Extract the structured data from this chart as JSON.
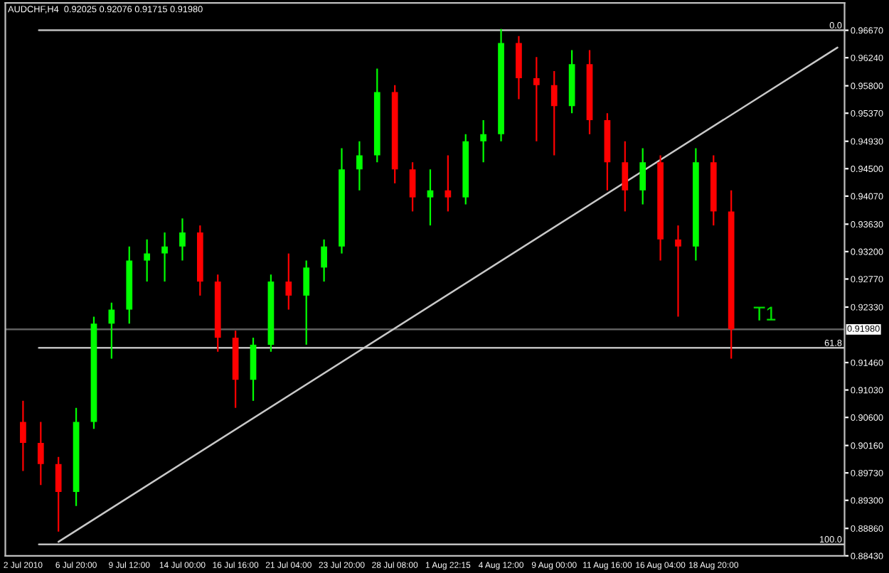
{
  "chart_data": {
    "type": "candlestick",
    "title": "AUDCHF,H4  0.92025 0.92076 0.91715 0.91980",
    "categories": [
      "2 Jul 2010",
      null,
      null,
      "6 Jul 20:00",
      null,
      null,
      "9 Jul 12:00",
      null,
      null,
      "14 Jul 00:00",
      null,
      null,
      "16 Jul 16:00",
      null,
      null,
      "21 Jul 04:00",
      null,
      null,
      "23 Jul 20:00",
      null,
      null,
      "28 Jul 08:00",
      null,
      null,
      "1 Aug 22:15",
      null,
      null,
      "4 Aug 12:00",
      null,
      null,
      "9 Aug 00:00",
      null,
      null,
      "11 Aug 16:00",
      null,
      null,
      "16 Aug 04:00",
      null,
      null,
      "18 Aug 20:00",
      null,
      null,
      null,
      null,
      null,
      null,
      null
    ],
    "ohlc": [
      [
        0.9053,
        0.9086,
        0.8976,
        0.902
      ],
      [
        0.902,
        0.9053,
        0.8954,
        0.8987
      ],
      [
        0.8987,
        0.8998,
        0.8881,
        0.8943
      ],
      [
        0.8943,
        0.9075,
        0.8921,
        0.9053
      ],
      [
        0.9053,
        0.9218,
        0.9042,
        0.9207
      ],
      [
        0.9207,
        0.924,
        0.9152,
        0.9229
      ],
      [
        0.9229,
        0.9328,
        0.9207,
        0.9306
      ],
      [
        0.9306,
        0.9339,
        0.9273,
        0.9317
      ],
      [
        0.9317,
        0.935,
        0.9273,
        0.9328
      ],
      [
        0.9328,
        0.9372,
        0.9306,
        0.935
      ],
      [
        0.935,
        0.9361,
        0.9251,
        0.9273
      ],
      [
        0.9273,
        0.9284,
        0.9163,
        0.9185
      ],
      [
        0.9185,
        0.9196,
        0.9075,
        0.9119
      ],
      [
        0.9119,
        0.9185,
        0.9086,
        0.9174
      ],
      [
        0.9174,
        0.9284,
        0.9163,
        0.9273
      ],
      [
        0.9273,
        0.9317,
        0.9229,
        0.9251
      ],
      [
        0.9251,
        0.9306,
        0.9174,
        0.9295
      ],
      [
        0.9295,
        0.9339,
        0.9273,
        0.9328
      ],
      [
        0.9328,
        0.9482,
        0.9317,
        0.9449
      ],
      [
        0.9449,
        0.9493,
        0.9416,
        0.9471
      ],
      [
        0.9471,
        0.9607,
        0.946,
        0.957
      ],
      [
        0.957,
        0.9581,
        0.9427,
        0.9449
      ],
      [
        0.9449,
        0.946,
        0.9383,
        0.9405
      ],
      [
        0.9405,
        0.9449,
        0.9361,
        0.9416
      ],
      [
        0.9416,
        0.9471,
        0.9383,
        0.9405
      ],
      [
        0.9405,
        0.9504,
        0.9394,
        0.9493
      ],
      [
        0.9493,
        0.9526,
        0.946,
        0.9504
      ],
      [
        0.9504,
        0.9669,
        0.9493,
        0.9647
      ],
      [
        0.9647,
        0.9658,
        0.9559,
        0.9592
      ],
      [
        0.9592,
        0.9625,
        0.9493,
        0.9581
      ],
      [
        0.9581,
        0.9603,
        0.9471,
        0.9548
      ],
      [
        0.9548,
        0.9636,
        0.9537,
        0.9614
      ],
      [
        0.9614,
        0.9636,
        0.9504,
        0.9526
      ],
      [
        0.9526,
        0.9537,
        0.9416,
        0.946
      ],
      [
        0.946,
        0.9493,
        0.9383,
        0.9416
      ],
      [
        0.9416,
        0.9482,
        0.9394,
        0.946
      ],
      [
        0.946,
        0.9471,
        0.9306,
        0.9339
      ],
      [
        0.9339,
        0.9361,
        0.9218,
        0.9328
      ],
      [
        0.9328,
        0.9482,
        0.9306,
        0.946
      ],
      [
        0.946,
        0.9471,
        0.9361,
        0.9383
      ],
      [
        0.9383,
        0.9416,
        0.9152,
        0.9198
      ],
      null,
      null,
      null,
      null,
      null,
      null
    ],
    "series": [
      {
        "type": "line",
        "color": "#c8c8c8",
        "values": [
          null,
          null,
          0.8865,
          null,
          null,
          null,
          null,
          null,
          null,
          null,
          null,
          null,
          null,
          null,
          null,
          null,
          null,
          null,
          null,
          null,
          null,
          null,
          null,
          null,
          null,
          null,
          null,
          null,
          null,
          null,
          null,
          null,
          null,
          null,
          null,
          null,
          null,
          null,
          null,
          null,
          null,
          null,
          null,
          null,
          null,
          null,
          0.964
        ]
      }
    ],
    "ylim": [
      0.8843,
      0.971
    ],
    "yticks": [
      {
        "value": 0.9667,
        "label": "0.96670"
      },
      {
        "value": 0.9624,
        "label": "0.96240"
      },
      {
        "value": 0.958,
        "label": "0.95800"
      },
      {
        "value": 0.9537,
        "label": "0.95370"
      },
      {
        "value": 0.9493,
        "label": "0.94930"
      },
      {
        "value": 0.945,
        "label": "0.94500"
      },
      {
        "value": 0.9407,
        "label": "0.94070"
      },
      {
        "value": 0.9363,
        "label": "0.93630"
      },
      {
        "value": 0.932,
        "label": "0.93200"
      },
      {
        "value": 0.9277,
        "label": "0.92770"
      },
      {
        "value": 0.9233,
        "label": "0.92330"
      },
      {
        "value": 0.9146,
        "label": "0.91460"
      },
      {
        "value": 0.9103,
        "label": "0.91030"
      },
      {
        "value": 0.906,
        "label": "0.90600"
      },
      {
        "value": 0.9016,
        "label": "0.90160"
      },
      {
        "value": 0.8973,
        "label": "0.89730"
      },
      {
        "value": 0.893,
        "label": "0.89300"
      },
      {
        "value": 0.8886,
        "label": "0.88860"
      },
      {
        "value": 0.8843,
        "label": "0.88430"
      }
    ],
    "ref_lines": [
      {
        "axis": "y",
        "value": 0.9198,
        "label": "0.91980",
        "color": "#606060"
      },
      {
        "axis": "y",
        "value": 0.9667,
        "color": "#c0c0c0"
      },
      {
        "axis": "y",
        "value": 0.9169,
        "color": "#c0c0c0"
      },
      {
        "axis": "y",
        "value": 0.8861,
        "color": "#c0c0c0"
      }
    ],
    "annotations": [
      {
        "text": "0.0",
        "y": 0.9667
      },
      {
        "text": "61.8",
        "y": 0.9169
      },
      {
        "text": "100.0",
        "y": 0.8861
      },
      "T1"
    ],
    "grid": false,
    "legend": false
  }
}
